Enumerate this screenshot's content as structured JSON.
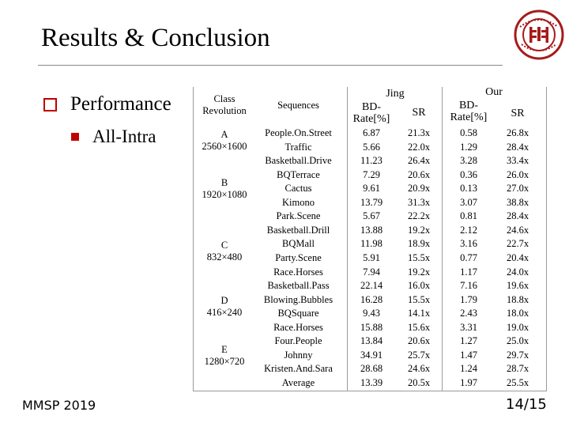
{
  "slide": {
    "title": "Results & Conclusion",
    "bullet1": "Performance",
    "bullet2": "All-Intra",
    "footer_left": "MMSP 2019",
    "page_number": "14/15"
  },
  "table": {
    "header": {
      "class_l1": "Class",
      "class_l2": "Revolution",
      "sequences": "Sequences",
      "jing": "Jing",
      "our": "Our",
      "bdrate_l1": "BD-",
      "bdrate_l2": "Rate[%]",
      "sr": "SR"
    },
    "classes": [
      {
        "name": "A",
        "res": "2560×1600"
      },
      {
        "name": "B",
        "res": "1920×1080"
      },
      {
        "name": "C",
        "res": "832×480"
      },
      {
        "name": "D",
        "res": "416×240"
      },
      {
        "name": "E",
        "res": "1280×720"
      }
    ],
    "rows": [
      {
        "seq": "People.On.Street",
        "jing_bd": "6.87",
        "jing_sr": "21.3x",
        "our_bd": "0.58",
        "our_sr": "26.8x"
      },
      {
        "seq": "Traffic",
        "jing_bd": "5.66",
        "jing_sr": "22.0x",
        "our_bd": "1.29",
        "our_sr": "28.4x"
      },
      {
        "seq": "Basketball.Drive",
        "jing_bd": "11.23",
        "jing_sr": "26.4x",
        "our_bd": "3.28",
        "our_sr": "33.4x"
      },
      {
        "seq": "BQTerrace",
        "jing_bd": "7.29",
        "jing_sr": "20.6x",
        "our_bd": "0.36",
        "our_sr": "26.0x"
      },
      {
        "seq": "Cactus",
        "jing_bd": "9.61",
        "jing_sr": "20.9x",
        "our_bd": "0.13",
        "our_sr": "27.0x"
      },
      {
        "seq": "Kimono",
        "jing_bd": "13.79",
        "jing_sr": "31.3x",
        "our_bd": "3.07",
        "our_sr": "38.8x"
      },
      {
        "seq": "Park.Scene",
        "jing_bd": "5.67",
        "jing_sr": "22.2x",
        "our_bd": "0.81",
        "our_sr": "28.4x"
      },
      {
        "seq": "Basketball.Drill",
        "jing_bd": "13.88",
        "jing_sr": "19.2x",
        "our_bd": "2.12",
        "our_sr": "24.6x"
      },
      {
        "seq": "BQMall",
        "jing_bd": "11.98",
        "jing_sr": "18.9x",
        "our_bd": "3.16",
        "our_sr": "22.7x"
      },
      {
        "seq": "Party.Scene",
        "jing_bd": "5.91",
        "jing_sr": "15.5x",
        "our_bd": "0.77",
        "our_sr": "20.4x"
      },
      {
        "seq": "Race.Horses",
        "jing_bd": "7.94",
        "jing_sr": "19.2x",
        "our_bd": "1.17",
        "our_sr": "24.0x"
      },
      {
        "seq": "Basketball.Pass",
        "jing_bd": "22.14",
        "jing_sr": "16.0x",
        "our_bd": "7.16",
        "our_sr": "19.6x"
      },
      {
        "seq": "Blowing.Bubbles",
        "jing_bd": "16.28",
        "jing_sr": "15.5x",
        "our_bd": "1.79",
        "our_sr": "18.8x"
      },
      {
        "seq": "BQSquare",
        "jing_bd": "9.43",
        "jing_sr": "14.1x",
        "our_bd": "2.43",
        "our_sr": "18.0x"
      },
      {
        "seq": "Race.Horses",
        "jing_bd": "15.88",
        "jing_sr": "15.6x",
        "our_bd": "3.31",
        "our_sr": "19.0x"
      },
      {
        "seq": "Four.People",
        "jing_bd": "13.84",
        "jing_sr": "20.6x",
        "our_bd": "1.27",
        "our_sr": "25.0x"
      },
      {
        "seq": "Johnny",
        "jing_bd": "34.91",
        "jing_sr": "25.7x",
        "our_bd": "1.47",
        "our_sr": "29.7x"
      },
      {
        "seq": "Kristen.And.Sara",
        "jing_bd": "28.68",
        "jing_sr": "24.6x",
        "our_bd": "1.24",
        "our_sr": "28.7x"
      },
      {
        "seq": "Average",
        "jing_bd": "13.39",
        "jing_sr": "20.5x",
        "our_bd": "1.97",
        "our_sr": "25.5x"
      }
    ]
  },
  "colors": {
    "bullet_red": "#c00000",
    "logo_red": "#a61b1b"
  },
  "icons": {
    "bullet1": "hollow-square-icon",
    "bullet2": "filled-square-icon",
    "logo": "university-seal-logo"
  }
}
